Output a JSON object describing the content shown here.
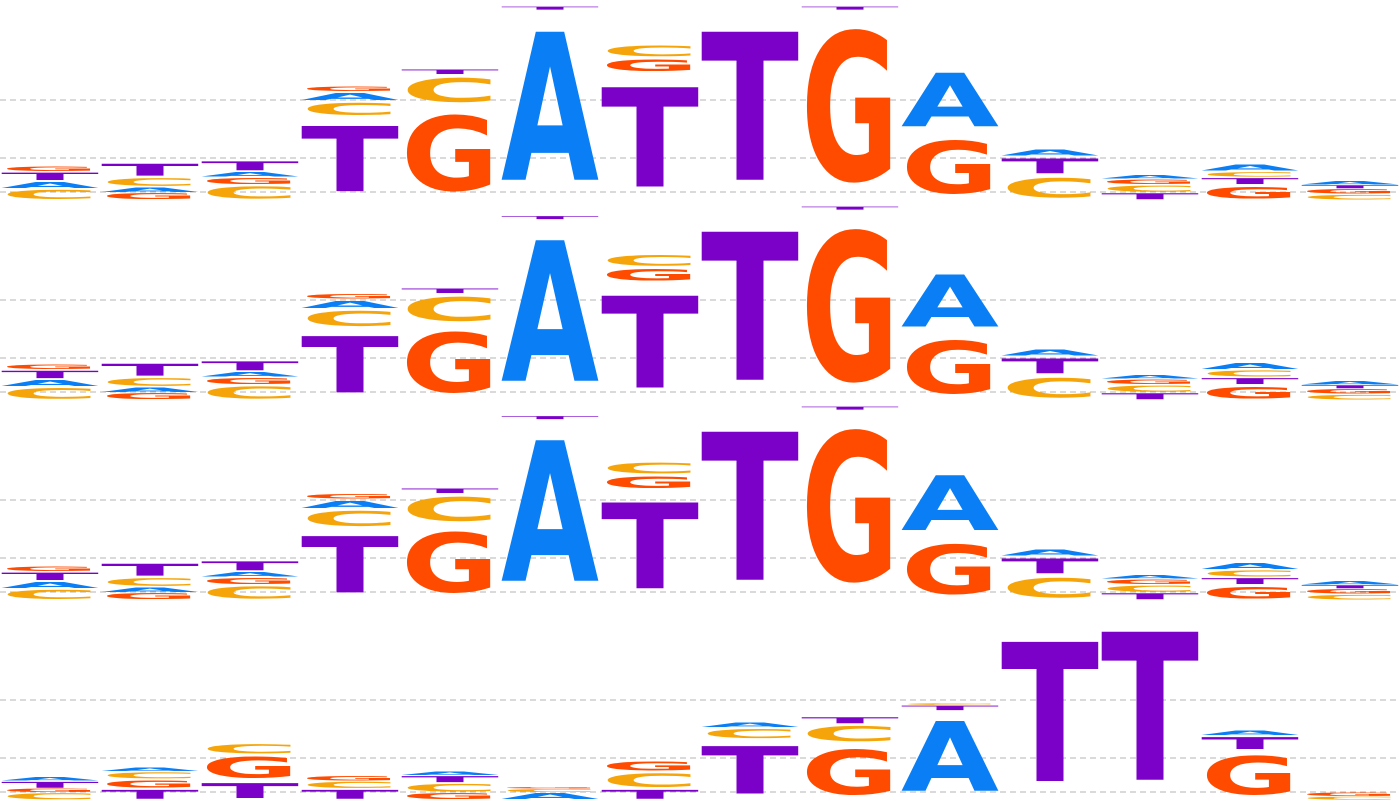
{
  "colors": {
    "A": "#0a7ff5",
    "C": "#f5a50a",
    "G": "#ff4b00",
    "T": "#7b00c8",
    "grid": "#b4b4b4"
  },
  "logos": [
    {
      "name": "motif-logo-1",
      "columns": [
        [
          [
            "C",
            0.06
          ],
          [
            "A",
            0.04
          ],
          [
            "T",
            0.05
          ],
          [
            "G",
            0.03
          ]
        ],
        [
          [
            "G",
            0.04
          ],
          [
            "A",
            0.03
          ],
          [
            "C",
            0.05
          ],
          [
            "T",
            0.08
          ]
        ],
        [
          [
            "C",
            0.08
          ],
          [
            "G",
            0.04
          ],
          [
            "A",
            0.03
          ],
          [
            "T",
            0.06
          ]
        ],
        [
          [
            "T",
            0.44
          ],
          [
            "C",
            0.08
          ],
          [
            "A",
            0.05
          ],
          [
            "G",
            0.03
          ]
        ],
        [
          [
            "G",
            0.5
          ],
          [
            "C",
            0.16
          ],
          [
            "T",
            0.03
          ]
        ],
        [
          [
            "A",
            1.0
          ],
          [
            "T",
            0.02
          ]
        ],
        [
          [
            "T",
            0.67
          ],
          [
            "G",
            0.08
          ],
          [
            "C",
            0.07
          ]
        ],
        [
          [
            "T",
            1.0
          ]
        ],
        [
          [
            "G",
            1.0
          ],
          [
            "T",
            0.02
          ]
        ],
        [
          [
            "G",
            0.35
          ],
          [
            "A",
            0.36
          ]
        ],
        [
          [
            "C",
            0.13
          ],
          [
            "T",
            0.1
          ],
          [
            "A",
            0.04
          ]
        ],
        [
          [
            "T",
            0.04
          ],
          [
            "C",
            0.04
          ],
          [
            "G",
            0.03
          ],
          [
            "A",
            0.02
          ]
        ],
        [
          [
            "G",
            0.08
          ],
          [
            "T",
            0.04
          ],
          [
            "C",
            0.03
          ],
          [
            "A",
            0.04
          ]
        ],
        [
          [
            "C",
            0.03
          ],
          [
            "G",
            0.03
          ],
          [
            "T",
            0.02
          ],
          [
            "A",
            0.02
          ]
        ]
      ]
    },
    {
      "name": "motif-logo-2",
      "columns": [
        [
          [
            "C",
            0.07
          ],
          [
            "A",
            0.04
          ],
          [
            "T",
            0.05
          ],
          [
            "G",
            0.03
          ]
        ],
        [
          [
            "G",
            0.04
          ],
          [
            "A",
            0.03
          ],
          [
            "C",
            0.05
          ],
          [
            "T",
            0.08
          ]
        ],
        [
          [
            "C",
            0.08
          ],
          [
            "G",
            0.04
          ],
          [
            "A",
            0.03
          ],
          [
            "T",
            0.06
          ]
        ],
        [
          [
            "T",
            0.38
          ],
          [
            "C",
            0.1
          ],
          [
            "A",
            0.05
          ],
          [
            "G",
            0.03
          ]
        ],
        [
          [
            "G",
            0.4
          ],
          [
            "C",
            0.16
          ],
          [
            "T",
            0.03
          ]
        ],
        [
          [
            "A",
            0.95
          ],
          [
            "T",
            0.02
          ]
        ],
        [
          [
            "T",
            0.62
          ],
          [
            "G",
            0.08
          ],
          [
            "C",
            0.07
          ]
        ],
        [
          [
            "T",
            1.0
          ]
        ],
        [
          [
            "G",
            1.0
          ],
          [
            "T",
            0.02
          ]
        ],
        [
          [
            "G",
            0.35
          ],
          [
            "A",
            0.35
          ]
        ],
        [
          [
            "C",
            0.13
          ],
          [
            "T",
            0.1
          ],
          [
            "A",
            0.04
          ]
        ],
        [
          [
            "T",
            0.04
          ],
          [
            "C",
            0.04
          ],
          [
            "G",
            0.03
          ],
          [
            "A",
            0.02
          ]
        ],
        [
          [
            "G",
            0.08
          ],
          [
            "T",
            0.04
          ],
          [
            "C",
            0.04
          ],
          [
            "A",
            0.04
          ]
        ],
        [
          [
            "C",
            0.03
          ],
          [
            "G",
            0.03
          ],
          [
            "T",
            0.02
          ],
          [
            "A",
            0.02
          ]
        ]
      ]
    },
    {
      "name": "motif-logo-3",
      "columns": [
        [
          [
            "C",
            0.06
          ],
          [
            "A",
            0.04
          ],
          [
            "T",
            0.05
          ],
          [
            "G",
            0.03
          ]
        ],
        [
          [
            "G",
            0.04
          ],
          [
            "A",
            0.03
          ],
          [
            "C",
            0.05
          ],
          [
            "T",
            0.08
          ]
        ],
        [
          [
            "C",
            0.08
          ],
          [
            "G",
            0.04
          ],
          [
            "A",
            0.03
          ],
          [
            "T",
            0.06
          ]
        ],
        [
          [
            "T",
            0.38
          ],
          [
            "C",
            0.1
          ],
          [
            "A",
            0.05
          ],
          [
            "G",
            0.03
          ]
        ],
        [
          [
            "G",
            0.4
          ],
          [
            "C",
            0.16
          ],
          [
            "T",
            0.03
          ]
        ],
        [
          [
            "A",
            0.95
          ],
          [
            "T",
            0.02
          ]
        ],
        [
          [
            "T",
            0.58
          ],
          [
            "G",
            0.08
          ],
          [
            "C",
            0.07
          ]
        ],
        [
          [
            "T",
            1.0
          ]
        ],
        [
          [
            "G",
            1.0
          ],
          [
            "T",
            0.02
          ]
        ],
        [
          [
            "G",
            0.33
          ],
          [
            "A",
            0.37
          ]
        ],
        [
          [
            "C",
            0.13
          ],
          [
            "T",
            0.1
          ],
          [
            "A",
            0.04
          ]
        ],
        [
          [
            "T",
            0.04
          ],
          [
            "C",
            0.04
          ],
          [
            "G",
            0.03
          ],
          [
            "A",
            0.02
          ]
        ],
        [
          [
            "G",
            0.08
          ],
          [
            "T",
            0.04
          ],
          [
            "C",
            0.04
          ],
          [
            "A",
            0.04
          ]
        ],
        [
          [
            "C",
            0.03
          ],
          [
            "G",
            0.03
          ],
          [
            "T",
            0.02
          ],
          [
            "A",
            0.02
          ]
        ]
      ]
    },
    {
      "name": "motif-logo-4",
      "columns": [
        [
          [
            "C",
            0.04
          ],
          [
            "G",
            0.02
          ],
          [
            "T",
            0.04
          ],
          [
            "A",
            0.02
          ]
        ],
        [
          [
            "T",
            0.06
          ],
          [
            "G",
            0.05
          ],
          [
            "C",
            0.04
          ],
          [
            "A",
            0.02
          ]
        ],
        [
          [
            "T",
            0.1
          ],
          [
            "G",
            0.14
          ],
          [
            "C",
            0.06
          ]
        ],
        [
          [
            "T",
            0.06
          ],
          [
            "C",
            0.04
          ],
          [
            "G",
            0.03
          ]
        ],
        [
          [
            "G",
            0.04
          ],
          [
            "C",
            0.05
          ],
          [
            "T",
            0.04
          ],
          [
            "A",
            0.02
          ]
        ],
        [
          [
            "A",
            0.04
          ],
          [
            "C",
            0.02
          ],
          [
            "G",
            0.01
          ]
        ],
        [
          [
            "T",
            0.06
          ],
          [
            "C",
            0.09
          ],
          [
            "G",
            0.06
          ]
        ],
        [
          [
            "T",
            0.32
          ],
          [
            "C",
            0.06
          ],
          [
            "A",
            0.03
          ]
        ],
        [
          [
            "G",
            0.3
          ],
          [
            "C",
            0.1
          ],
          [
            "T",
            0.04
          ]
        ],
        [
          [
            "A",
            0.47
          ],
          [
            "T",
            0.03
          ],
          [
            "C",
            0.01
          ]
        ],
        [
          [
            "T",
            0.94
          ]
        ],
        [
          [
            "T",
            1.0
          ]
        ],
        [
          [
            "G",
            0.26
          ],
          [
            "T",
            0.08
          ],
          [
            "A",
            0.03
          ]
        ],
        [
          [
            "C",
            0.02
          ],
          [
            "G",
            0.02
          ]
        ]
      ]
    }
  ]
}
